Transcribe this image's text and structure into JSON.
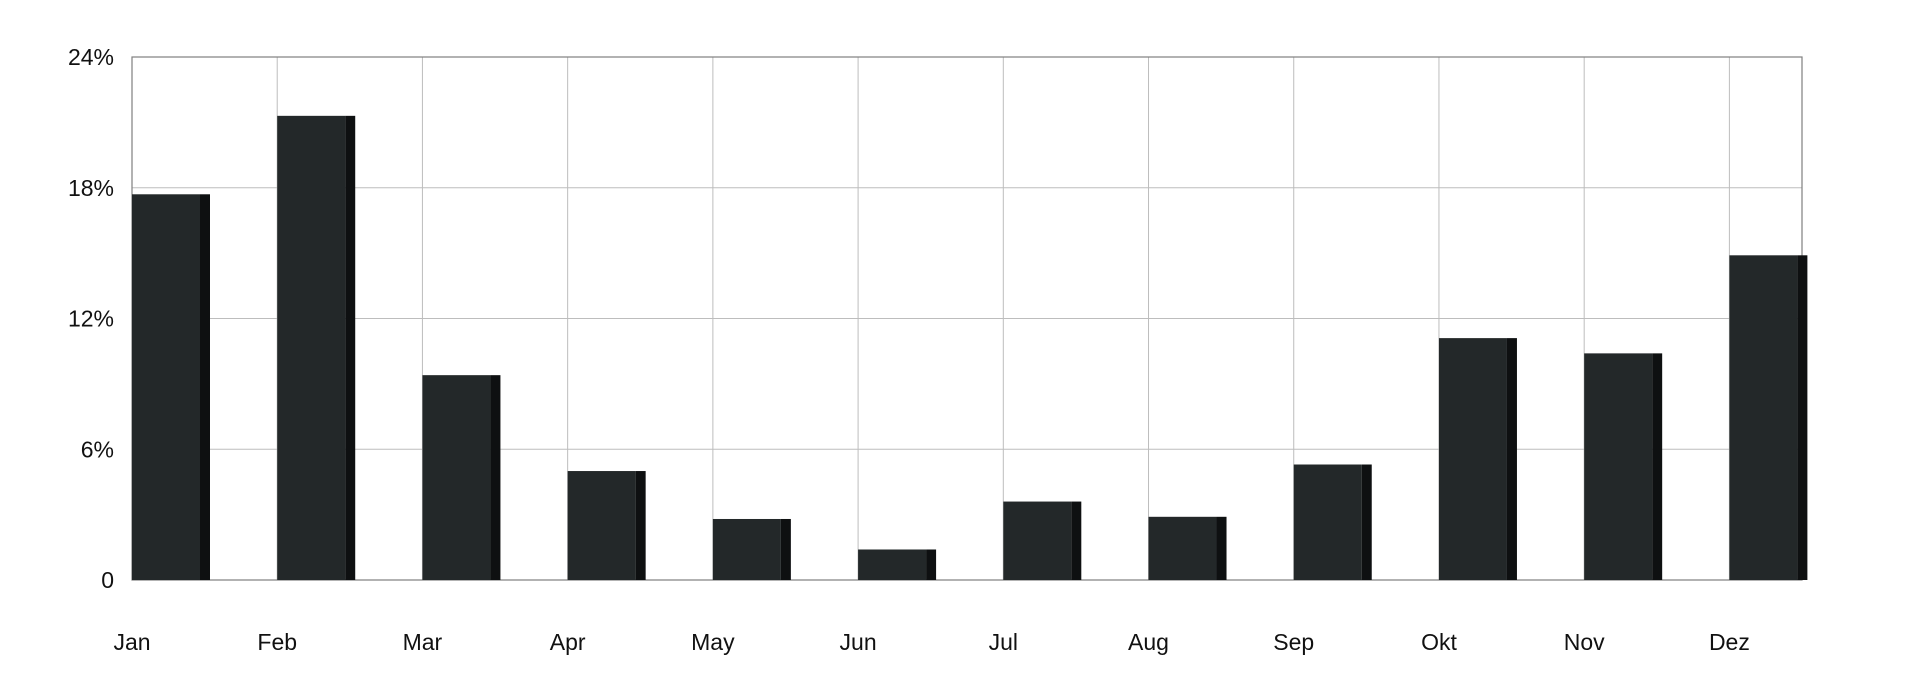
{
  "chart_data": {
    "type": "bar",
    "categories": [
      "Jan",
      "Feb",
      "Mar",
      "Apr",
      "May",
      "Jun",
      "Jul",
      "Aug",
      "Sep",
      "Okt",
      "Nov",
      "Dez"
    ],
    "values": [
      17.7,
      21.3,
      9.4,
      5.0,
      2.8,
      1.4,
      3.6,
      2.9,
      5.3,
      11.1,
      10.4,
      14.9
    ],
    "ylim": [
      0,
      24
    ],
    "yticks": [
      0,
      6,
      12,
      18,
      24
    ],
    "ytick_labels": [
      "0",
      "6%",
      "12%",
      "18%",
      "24%"
    ],
    "grid": true,
    "title": "",
    "xlabel": "",
    "ylabel": "",
    "colors": {
      "bar": "#232829",
      "bar_shade": "#0e1011",
      "grid": "#bdbdbd",
      "axis": "#7f7f7f"
    }
  }
}
